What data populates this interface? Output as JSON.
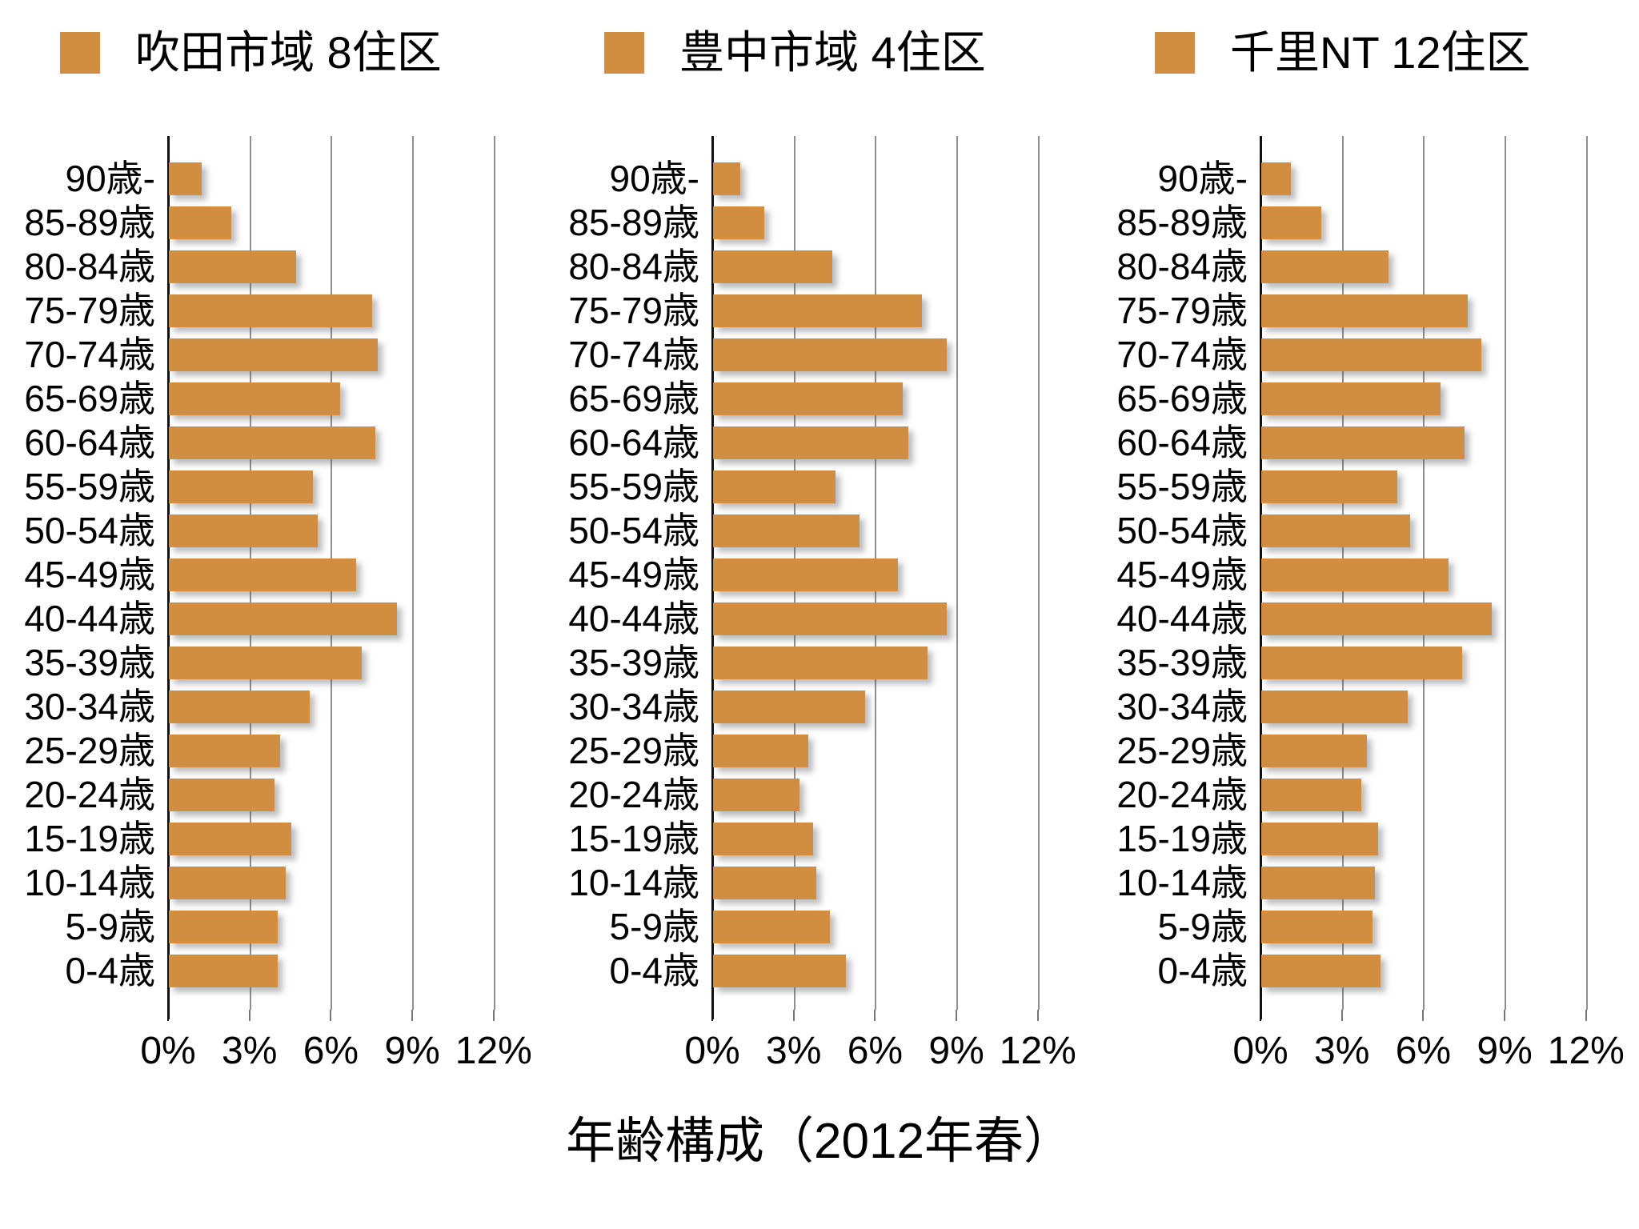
{
  "title": "年齢構成（2012年春）",
  "colors": {
    "bar": "#D18D40",
    "axis": "#111111",
    "gridline": "#8f8f8f"
  },
  "legend": {
    "items": [
      {
        "label": "吹田市域 8住区"
      },
      {
        "label": "豊中市域 4住区"
      },
      {
        "label": "千里NT 12住区"
      }
    ]
  },
  "x_axis": {
    "tick_labels": [
      "0%",
      "3%",
      "6%",
      "9%",
      "12%"
    ],
    "tick_values": [
      0,
      3,
      6,
      9,
      12
    ]
  },
  "chart_data": {
    "type": "bar",
    "orientation": "horizontal",
    "title": "年齢構成（2012年春）",
    "grid": true,
    "legend_position": "top",
    "xlim": [
      0,
      13.1
    ],
    "x_tick_labels": [
      "0%",
      "3%",
      "6%",
      "9%",
      "12%"
    ],
    "x_tick_values": [
      0,
      3,
      6,
      9,
      12
    ],
    "unit": "percent",
    "categories": [
      "90歳-",
      "85-89歳",
      "80-84歳",
      "75-79歳",
      "70-74歳",
      "65-69歳",
      "60-64歳",
      "55-59歳",
      "50-54歳",
      "45-49歳",
      "40-44歳",
      "35-39歳",
      "30-34歳",
      "25-29歳",
      "20-24歳",
      "15-19歳",
      "10-14歳",
      "5-9歳",
      "0-4歳"
    ],
    "series": [
      {
        "name": "吹田市域 8住区",
        "values": [
          1.2,
          2.3,
          4.7,
          7.5,
          7.7,
          6.3,
          7.6,
          5.3,
          5.5,
          6.9,
          8.4,
          7.1,
          5.2,
          4.1,
          3.9,
          4.5,
          4.3,
          4.0,
          4.0
        ]
      },
      {
        "name": "豊中市域 4住区",
        "values": [
          1.0,
          1.9,
          4.4,
          7.7,
          8.6,
          7.0,
          7.2,
          4.5,
          5.4,
          6.8,
          8.6,
          7.9,
          5.6,
          3.5,
          3.2,
          3.7,
          3.8,
          4.3,
          4.9
        ]
      },
      {
        "name": "千里NT 12住区",
        "values": [
          1.1,
          2.2,
          4.7,
          7.6,
          8.1,
          6.6,
          7.5,
          5.0,
          5.5,
          6.9,
          8.5,
          7.4,
          5.4,
          3.9,
          3.7,
          4.3,
          4.2,
          4.1,
          4.4
        ]
      }
    ]
  }
}
